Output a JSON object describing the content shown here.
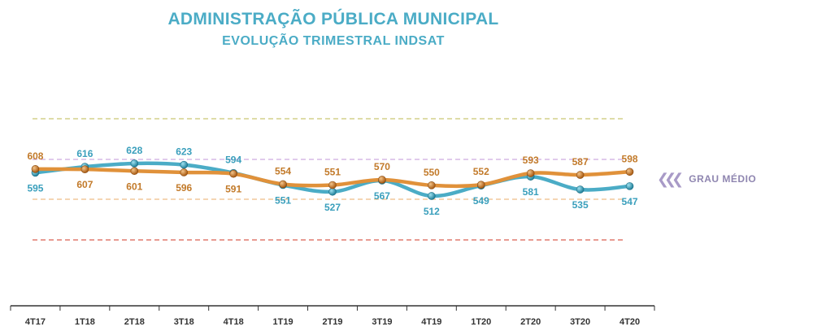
{
  "title": "ADMINISTRAÇÃO PÚBLICA MUNICIPAL",
  "subtitle": "EVOLUÇÃO TRIMESTRAL INDSAT",
  "annotation": "GRAU MÉDIO",
  "annotation_icon": "triple-chevron-left-icon",
  "chart_data": {
    "type": "line",
    "categories": [
      "4T17",
      "1T18",
      "2T18",
      "3T18",
      "4T18",
      "1T19",
      "2T19",
      "3T19",
      "4T19",
      "1T20",
      "2T20",
      "3T20",
      "4T20"
    ],
    "series": [
      {
        "color": "#4bacc6",
        "values": [
          595,
          616,
          628,
          623,
          594,
          551,
          527,
          567,
          512,
          549,
          581,
          535,
          547
        ]
      },
      {
        "color": "#e0913a",
        "values": [
          608,
          607,
          601,
          596,
          591,
          554,
          551,
          570,
          550,
          552,
          593,
          587,
          598
        ]
      }
    ],
    "reference_lines": [
      {
        "color": "#d4d08a"
      },
      {
        "color": "#d6b8e6"
      },
      {
        "color": "#f2c79a"
      },
      {
        "color": "#e07a6e"
      }
    ],
    "grid": false,
    "legend": "none"
  }
}
